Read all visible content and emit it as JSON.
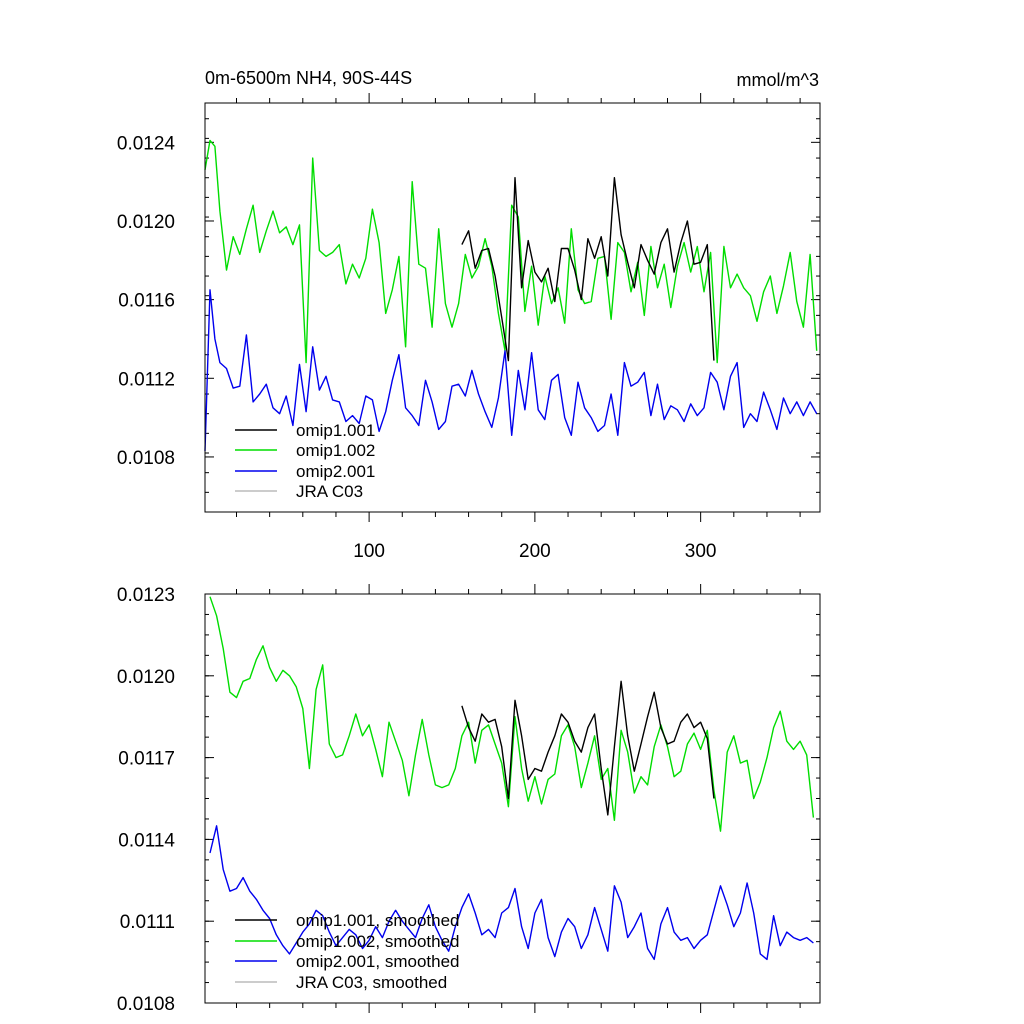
{
  "top_panel": {
    "title_left": "0m-6500m NH4, 90S-44S",
    "title_right": "mmol/m^3",
    "legend": [
      "omip1.001",
      "omip1.002",
      "omip2.001",
      "JRA C03"
    ]
  },
  "bottom_panel": {
    "legend": [
      "omip1.001, smoothed",
      "omip1.002, smoothed",
      "omip2.001, smoothed",
      "JRA C03, smoothed"
    ]
  },
  "series_colors": {
    "omip1.001": "#000000",
    "omip1.002": "#00dd00",
    "omip2.001": "#0000ee",
    "JRA C03": "#bbbbbb"
  },
  "chart_data": [
    {
      "type": "line",
      "title": "0m-6500m NH4, 90S-44S",
      "units": "mmol/m^3",
      "xlim": [
        1,
        372
      ],
      "ylim": [
        0.01052,
        0.0126
      ],
      "xticks": [
        100,
        200,
        300
      ],
      "xtick_labels": [
        "100",
        "200",
        "300"
      ],
      "yticks": [
        0.0108,
        0.0112,
        0.0116,
        0.012,
        0.0124
      ],
      "ytick_labels": [
        "0.0108",
        "0.0112",
        "0.0116",
        "0.0120",
        "0.0124"
      ],
      "series": [
        {
          "name": "omip1.002",
          "color": "#00dd00",
          "x": [
            1,
            4,
            7,
            10,
            14,
            18,
            22,
            26,
            30,
            34,
            38,
            42,
            46,
            50,
            54,
            58,
            62,
            66,
            70,
            74,
            78,
            82,
            86,
            90,
            94,
            98,
            102,
            106,
            110,
            114,
            118,
            122,
            126,
            130,
            134,
            138,
            142,
            146,
            150,
            154,
            158,
            162,
            166,
            170,
            174,
            178,
            182,
            186,
            190,
            194,
            198,
            202,
            206,
            210,
            214,
            218,
            222,
            226,
            230,
            234,
            238,
            242,
            246,
            250,
            254,
            258,
            262,
            266,
            270,
            274,
            278,
            282,
            286,
            290,
            294,
            298,
            302,
            306,
            310,
            314,
            318,
            322,
            326,
            330,
            334,
            338,
            342,
            346,
            350,
            354,
            358,
            362,
            366,
            370
          ],
          "values": [
            0.01226,
            0.01241,
            0.01238,
            0.01205,
            0.01175,
            0.01192,
            0.01183,
            0.01196,
            0.01208,
            0.01184,
            0.01195,
            0.01205,
            0.01194,
            0.01197,
            0.01188,
            0.01198,
            0.01128,
            0.01232,
            0.01185,
            0.01182,
            0.01184,
            0.01188,
            0.01168,
            0.01178,
            0.01171,
            0.01181,
            0.01206,
            0.01189,
            0.01153,
            0.01165,
            0.01182,
            0.01136,
            0.0122,
            0.01178,
            0.01176,
            0.01146,
            0.01196,
            0.01158,
            0.01146,
            0.01158,
            0.01183,
            0.01171,
            0.01177,
            0.01191,
            0.01177,
            0.01153,
            0.01134,
            0.01208,
            0.01202,
            0.01154,
            0.01177,
            0.01147,
            0.01172,
            0.01158,
            0.01166,
            0.01148,
            0.01196,
            0.01165,
            0.01158,
            0.01159,
            0.01181,
            0.01182,
            0.0115,
            0.01189,
            0.01184,
            0.01164,
            0.01179,
            0.01152,
            0.01187,
            0.01166,
            0.01178,
            0.01156,
            0.01177,
            0.01189,
            0.01174,
            0.01187,
            0.01164,
            0.01184,
            0.01128,
            0.01187,
            0.01166,
            0.01173,
            0.01166,
            0.01162,
            0.01149,
            0.01164,
            0.01172,
            0.01153,
            0.01167,
            0.01184,
            0.01159,
            0.01146,
            0.01183,
            0.01134
          ]
        },
        {
          "name": "omip1.001",
          "color": "#000000",
          "x": [
            156,
            160,
            164,
            168,
            172,
            176,
            180,
            184,
            188,
            192,
            196,
            200,
            204,
            208,
            212,
            216,
            220,
            224,
            228,
            232,
            236,
            240,
            244,
            248,
            252,
            256,
            260,
            264,
            268,
            272,
            276,
            280,
            284,
            288,
            292,
            296,
            300,
            304,
            308
          ],
          "values": [
            0.01188,
            0.01195,
            0.01176,
            0.01185,
            0.01186,
            0.01172,
            0.01151,
            0.01129,
            0.01222,
            0.01166,
            0.0119,
            0.01174,
            0.01169,
            0.01176,
            0.01159,
            0.01186,
            0.01186,
            0.01175,
            0.0116,
            0.01191,
            0.01181,
            0.01192,
            0.01172,
            0.01222,
            0.01193,
            0.01179,
            0.01166,
            0.01188,
            0.0118,
            0.01173,
            0.01189,
            0.01196,
            0.01174,
            0.01189,
            0.012,
            0.01178,
            0.01179,
            0.01188,
            0.01129
          ]
        },
        {
          "name": "omip2.001",
          "color": "#0000ee",
          "x": [
            1,
            4,
            7,
            10,
            14,
            18,
            22,
            26,
            30,
            34,
            38,
            42,
            46,
            50,
            54,
            58,
            62,
            66,
            70,
            74,
            78,
            82,
            86,
            90,
            94,
            98,
            102,
            106,
            110,
            114,
            118,
            122,
            126,
            130,
            134,
            138,
            142,
            146,
            150,
            154,
            158,
            162,
            166,
            170,
            174,
            178,
            182,
            186,
            190,
            194,
            198,
            202,
            206,
            210,
            214,
            218,
            222,
            226,
            230,
            234,
            238,
            242,
            246,
            250,
            254,
            258,
            262,
            266,
            270,
            274,
            278,
            282,
            286,
            290,
            294,
            298,
            302,
            306,
            310,
            314,
            318,
            322,
            326,
            330,
            334,
            338,
            342,
            346,
            350,
            354,
            358,
            362,
            366,
            370
          ],
          "values": [
            0.01083,
            0.01165,
            0.0114,
            0.01128,
            0.01125,
            0.01115,
            0.01116,
            0.01142,
            0.01108,
            0.01112,
            0.01117,
            0.01105,
            0.01102,
            0.01111,
            0.01096,
            0.01127,
            0.01103,
            0.01136,
            0.01114,
            0.01121,
            0.01109,
            0.01108,
            0.01098,
            0.01101,
            0.01097,
            0.01111,
            0.01109,
            0.01093,
            0.01103,
            0.01119,
            0.01132,
            0.01105,
            0.01101,
            0.01096,
            0.01119,
            0.01108,
            0.01094,
            0.01098,
            0.01116,
            0.01117,
            0.01111,
            0.01124,
            0.01112,
            0.01103,
            0.01095,
            0.0111,
            0.01134,
            0.01091,
            0.01124,
            0.01104,
            0.01133,
            0.01104,
            0.01099,
            0.01119,
            0.01122,
            0.011,
            0.01091,
            0.01118,
            0.01105,
            0.011,
            0.01093,
            0.01096,
            0.01112,
            0.01091,
            0.01128,
            0.01116,
            0.01118,
            0.01123,
            0.01101,
            0.01117,
            0.01099,
            0.01106,
            0.01104,
            0.01098,
            0.01107,
            0.01101,
            0.01105,
            0.01123,
            0.01118,
            0.01104,
            0.01121,
            0.01128,
            0.01095,
            0.01102,
            0.01098,
            0.01113,
            0.01104,
            0.01094,
            0.0111,
            0.01102,
            0.01108,
            0.01101,
            0.01108,
            0.01102
          ]
        }
      ]
    },
    {
      "type": "line",
      "title": "",
      "xlim": [
        1,
        372
      ],
      "ylim": [
        0.0108,
        0.0123
      ],
      "xticks": [
        100,
        200,
        300
      ],
      "xtick_labels": [],
      "yticks": [
        0.0108,
        0.0111,
        0.0114,
        0.0117,
        0.012,
        0.0123
      ],
      "ytick_labels": [
        "0.0108",
        "0.0111",
        "0.0114",
        "0.0117",
        "0.0120",
        "0.0123"
      ],
      "series": [
        {
          "name": "omip1.002, smoothed",
          "color": "#00dd00",
          "x": [
            4,
            8,
            12,
            16,
            20,
            24,
            28,
            32,
            36,
            40,
            44,
            48,
            52,
            56,
            60,
            64,
            68,
            72,
            76,
            80,
            84,
            88,
            92,
            96,
            100,
            104,
            108,
            112,
            116,
            120,
            124,
            128,
            132,
            136,
            140,
            144,
            148,
            152,
            156,
            160,
            164,
            168,
            172,
            176,
            180,
            184,
            188,
            192,
            196,
            200,
            204,
            208,
            212,
            216,
            220,
            224,
            228,
            232,
            236,
            240,
            244,
            248,
            252,
            256,
            260,
            264,
            268,
            272,
            276,
            280,
            284,
            288,
            292,
            296,
            300,
            304,
            308,
            312,
            316,
            320,
            324,
            328,
            332,
            336,
            340,
            344,
            348,
            352,
            356,
            360,
            364,
            368
          ],
          "values": [
            0.01229,
            0.01222,
            0.0121,
            0.01194,
            0.01192,
            0.01198,
            0.01199,
            0.01206,
            0.01211,
            0.01203,
            0.01198,
            0.01202,
            0.012,
            0.01196,
            0.01188,
            0.01166,
            0.01195,
            0.01204,
            0.01175,
            0.0117,
            0.01171,
            0.01178,
            0.01186,
            0.01178,
            0.01182,
            0.01173,
            0.01163,
            0.01183,
            0.01176,
            0.01169,
            0.01156,
            0.01171,
            0.01184,
            0.01171,
            0.0116,
            0.01159,
            0.0116,
            0.01166,
            0.01178,
            0.01183,
            0.01168,
            0.0118,
            0.01182,
            0.01175,
            0.01168,
            0.01152,
            0.01185,
            0.01166,
            0.01154,
            0.01163,
            0.01153,
            0.01162,
            0.01164,
            0.01178,
            0.01182,
            0.01174,
            0.01159,
            0.01168,
            0.01178,
            0.01162,
            0.01166,
            0.01147,
            0.0118,
            0.01172,
            0.01157,
            0.01163,
            0.0116,
            0.01174,
            0.01182,
            0.01174,
            0.01163,
            0.01165,
            0.01175,
            0.01179,
            0.01173,
            0.0118,
            0.01158,
            0.01143,
            0.01172,
            0.01178,
            0.01168,
            0.01169,
            0.01155,
            0.01161,
            0.0117,
            0.01181,
            0.01187,
            0.01176,
            0.01173,
            0.01176,
            0.01171,
            0.01148
          ]
        },
        {
          "name": "omip1.001, smoothed",
          "color": "#000000",
          "x": [
            156,
            160,
            164,
            168,
            172,
            176,
            180,
            184,
            188,
            192,
            196,
            200,
            204,
            208,
            212,
            216,
            220,
            224,
            228,
            232,
            236,
            240,
            244,
            248,
            252,
            256,
            260,
            264,
            268,
            272,
            276,
            280,
            284,
            288,
            292,
            296,
            300,
            304,
            308
          ],
          "values": [
            0.01189,
            0.01181,
            0.01176,
            0.01186,
            0.01183,
            0.01184,
            0.01174,
            0.01155,
            0.01191,
            0.01178,
            0.01162,
            0.01166,
            0.01165,
            0.01172,
            0.01178,
            0.01186,
            0.01183,
            0.01176,
            0.01172,
            0.01181,
            0.01186,
            0.01166,
            0.01149,
            0.01174,
            0.01198,
            0.01178,
            0.01165,
            0.01175,
            0.01185,
            0.01194,
            0.01181,
            0.01175,
            0.01176,
            0.01183,
            0.01186,
            0.01181,
            0.01183,
            0.01177,
            0.01155
          ]
        },
        {
          "name": "omip2.001, smoothed",
          "color": "#0000ee",
          "x": [
            4,
            8,
            12,
            16,
            20,
            24,
            28,
            32,
            36,
            40,
            44,
            48,
            52,
            56,
            60,
            64,
            68,
            72,
            76,
            80,
            84,
            88,
            92,
            96,
            100,
            104,
            108,
            112,
            116,
            120,
            124,
            128,
            132,
            136,
            140,
            144,
            148,
            152,
            156,
            160,
            164,
            168,
            172,
            176,
            180,
            184,
            188,
            192,
            196,
            200,
            204,
            208,
            212,
            216,
            220,
            224,
            228,
            232,
            236,
            240,
            244,
            248,
            252,
            256,
            260,
            264,
            268,
            272,
            276,
            280,
            284,
            288,
            292,
            296,
            300,
            304,
            308,
            312,
            316,
            320,
            324,
            328,
            332,
            336,
            340,
            344,
            348,
            352,
            356,
            360,
            364,
            368
          ],
          "values": [
            0.01135,
            0.01145,
            0.01129,
            0.01121,
            0.01122,
            0.01126,
            0.01121,
            0.01118,
            0.01114,
            0.01111,
            0.01105,
            0.01101,
            0.01098,
            0.01102,
            0.01106,
            0.01109,
            0.01114,
            0.01112,
            0.01106,
            0.01101,
            0.01104,
            0.01107,
            0.01105,
            0.011,
            0.01103,
            0.01108,
            0.01104,
            0.0111,
            0.01114,
            0.0111,
            0.01107,
            0.01104,
            0.01111,
            0.01116,
            0.01108,
            0.01103,
            0.01099,
            0.01108,
            0.01115,
            0.0112,
            0.01113,
            0.01105,
            0.01107,
            0.01104,
            0.01113,
            0.01115,
            0.01122,
            0.01108,
            0.011,
            0.01113,
            0.01118,
            0.01104,
            0.01097,
            0.01106,
            0.01111,
            0.01108,
            0.011,
            0.01105,
            0.01115,
            0.01107,
            0.01099,
            0.01123,
            0.01117,
            0.01104,
            0.01108,
            0.01113,
            0.011,
            0.01096,
            0.01109,
            0.01115,
            0.01106,
            0.01103,
            0.01104,
            0.011,
            0.01103,
            0.01105,
            0.01114,
            0.01123,
            0.01116,
            0.01108,
            0.01113,
            0.01124,
            0.01113,
            0.01098,
            0.01096,
            0.01112,
            0.01101,
            0.01106,
            0.01104,
            0.01103,
            0.01104,
            0.01102
          ]
        }
      ]
    }
  ]
}
